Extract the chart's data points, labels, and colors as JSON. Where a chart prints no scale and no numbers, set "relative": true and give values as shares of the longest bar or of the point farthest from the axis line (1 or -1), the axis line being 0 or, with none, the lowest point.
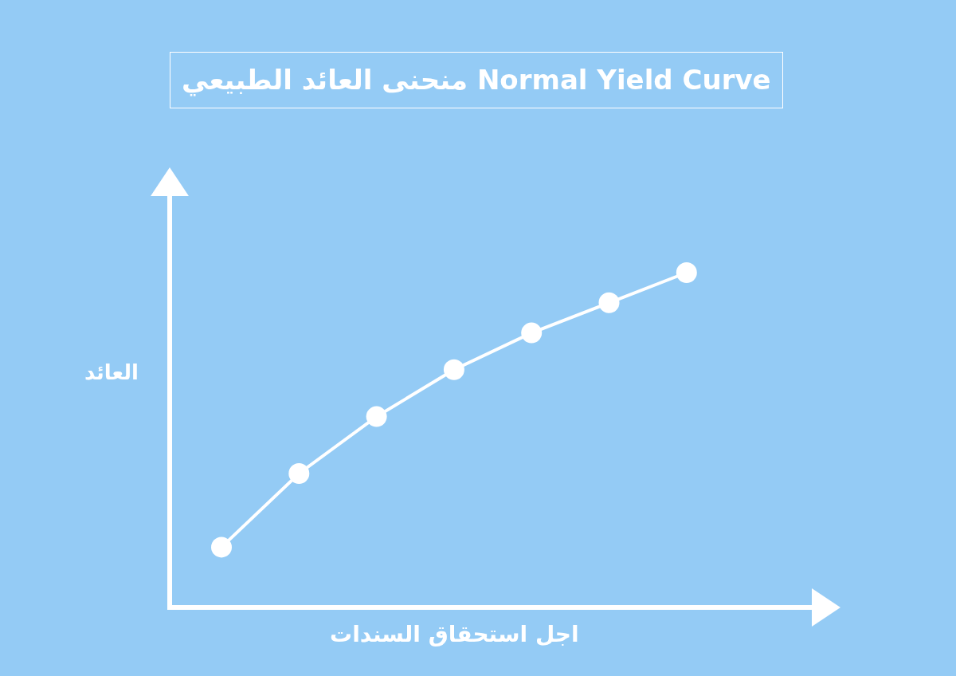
{
  "chart_data": {
    "type": "line",
    "title": "منحنى العائد الطبيعي Normal Yield Curve",
    "xlabel": "اجل استحقاق السندات",
    "ylabel": "العائد",
    "categories": [
      null,
      null,
      null,
      null,
      null,
      null,
      null
    ],
    "series": [
      {
        "color": "#ffffff",
        "values": [
          0.18,
          0.4,
          0.57,
          0.71,
          0.82,
          0.91,
          1.0
        ]
      }
    ],
    "relative": true,
    "marker": "circle",
    "line_style": "solid"
  }
}
